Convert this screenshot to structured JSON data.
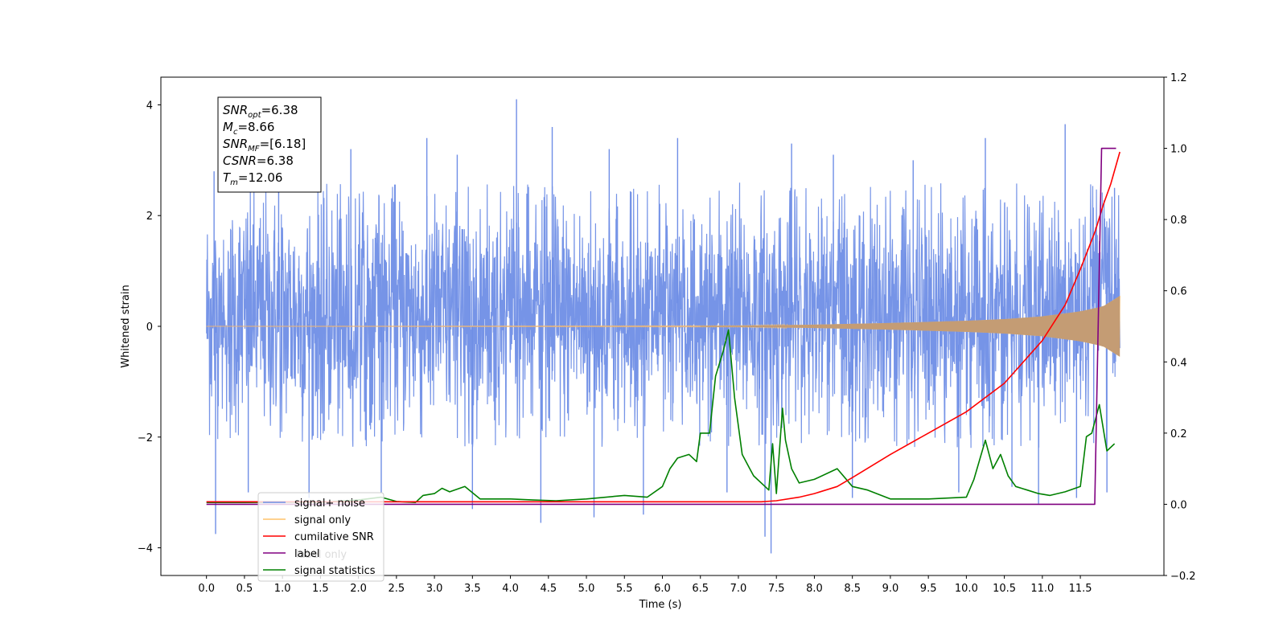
{
  "chart_data": {
    "type": "line",
    "xlabel": "Time (s)",
    "ylabel_left": "Whitened strain",
    "xlim": [
      -0.6,
      12.6
    ],
    "ylim_left": [
      -4.5,
      4.5
    ],
    "ylim_right": [
      -0.2,
      1.2
    ],
    "x_ticks": [
      0.0,
      0.5,
      1.0,
      1.5,
      2.0,
      2.5,
      3.0,
      3.5,
      4.0,
      4.5,
      5.0,
      5.5,
      6.0,
      6.5,
      7.0,
      7.5,
      8.0,
      8.5,
      9.0,
      9.5,
      10.0,
      10.5,
      11.0,
      11.5
    ],
    "x_tick_labels": [
      "0.0",
      "0.5",
      "1.0",
      "1.5",
      "2.0",
      "2.5",
      "3.0",
      "3.5",
      "4.0",
      "4.5",
      "5.0",
      "5.5",
      "6.0",
      "6.5",
      "7.0",
      "7.5",
      "8.0",
      "8.5",
      "9.0",
      "9.5",
      "10.0",
      "10.5",
      "11.0",
      "11.5"
    ],
    "y_left_ticks": [
      -4,
      -2,
      0,
      2,
      4
    ],
    "y_left_tick_labels": [
      "−4",
      "−2",
      "0",
      "2",
      "4"
    ],
    "y_right_ticks": [
      -0.2,
      0.0,
      0.2,
      0.4,
      0.6,
      0.8,
      1.0,
      1.2
    ],
    "y_right_tick_labels": [
      "−0.2",
      "0.0",
      "0.2",
      "0.4",
      "0.6",
      "0.8",
      "1.0",
      "1.2"
    ],
    "grid": false,
    "annotation": [
      {
        "main": "SNR",
        "sub": "opt",
        "rest": "=6.38"
      },
      {
        "main": "M",
        "sub": "c",
        "rest": "=8.66"
      },
      {
        "main": "SNR",
        "sub": "MF",
        "rest": "=[6.18]"
      },
      {
        "main": "CSNR",
        "sub": "",
        "rest": "=6.38"
      },
      {
        "main": "T",
        "sub": "m",
        "rest": "=12.06"
      }
    ],
    "legend": {
      "placement": "lower-left",
      "entries": [
        {
          "name": "signal+ noise",
          "color": "#6f8ee6"
        },
        {
          "name": "signal only",
          "color": "#ffc46a"
        },
        {
          "name": "cumilative SNR",
          "color": "#ff0000"
        },
        {
          "name": "label",
          "color": "#800080"
        },
        {
          "name": "signal statistics",
          "color": "#008000"
        }
      ],
      "ghost_text": "label only"
    },
    "series": [
      {
        "name": "signal+ noise",
        "axis": "left",
        "color": "#6f8ee6",
        "style": "dense noise band",
        "x_range": [
          0.0,
          12.02
        ],
        "typical_range": [
          -1.9,
          2.3
        ],
        "spikes": [
          {
            "x": 0.12,
            "y": -3.75
          },
          {
            "x": 0.1,
            "y": 2.8
          },
          {
            "x": 0.55,
            "y": -3.0
          },
          {
            "x": 0.95,
            "y": 2.7
          },
          {
            "x": 1.35,
            "y": -3.1
          },
          {
            "x": 1.9,
            "y": 3.2
          },
          {
            "x": 2.3,
            "y": -3.0
          },
          {
            "x": 2.9,
            "y": 3.4
          },
          {
            "x": 3.3,
            "y": 3.1
          },
          {
            "x": 3.5,
            "y": -3.3
          },
          {
            "x": 4.08,
            "y": 4.1
          },
          {
            "x": 4.4,
            "y": -3.55
          },
          {
            "x": 4.55,
            "y": 3.6
          },
          {
            "x": 5.1,
            "y": -3.45
          },
          {
            "x": 5.3,
            "y": 3.2
          },
          {
            "x": 5.75,
            "y": -3.4
          },
          {
            "x": 6.2,
            "y": 3.4
          },
          {
            "x": 6.85,
            "y": -3.0
          },
          {
            "x": 7.35,
            "y": -3.8
          },
          {
            "x": 7.43,
            "y": -4.1
          },
          {
            "x": 7.7,
            "y": 3.3
          },
          {
            "x": 8.25,
            "y": 3.1
          },
          {
            "x": 8.5,
            "y": -3.1
          },
          {
            "x": 9.3,
            "y": 3.0
          },
          {
            "x": 9.9,
            "y": -3.0
          },
          {
            "x": 10.25,
            "y": 3.4
          },
          {
            "x": 10.6,
            "y": -2.9
          },
          {
            "x": 10.95,
            "y": -3.2
          },
          {
            "x": 11.3,
            "y": 3.65
          },
          {
            "x": 11.45,
            "y": -3.1
          },
          {
            "x": 11.85,
            "y": -3.0
          },
          {
            "x": 11.95,
            "y": 2.5
          }
        ]
      },
      {
        "name": "signal only",
        "axis": "left",
        "color": "#ffc46a",
        "style": "chirp envelope",
        "x": [
          0.0,
          7.0,
          8.0,
          9.0,
          10.0,
          10.5,
          11.0,
          11.5,
          11.8,
          12.02
        ],
        "envelope": [
          0.0,
          0.01,
          0.03,
          0.06,
          0.1,
          0.13,
          0.18,
          0.27,
          0.36,
          0.55
        ]
      },
      {
        "name": "cumilative SNR",
        "axis": "right",
        "color": "#ff0000",
        "x": [
          0.0,
          7.3,
          7.5,
          7.8,
          8.0,
          8.3,
          8.5,
          9.0,
          9.5,
          10.0,
          10.5,
          11.0,
          11.3,
          11.5,
          11.7,
          11.8,
          11.9,
          12.02
        ],
        "values": [
          0.007,
          0.007,
          0.01,
          0.02,
          0.03,
          0.05,
          0.075,
          0.14,
          0.2,
          0.26,
          0.34,
          0.46,
          0.56,
          0.66,
          0.77,
          0.84,
          0.9,
          0.99
        ]
      },
      {
        "name": "label",
        "axis": "right",
        "color": "#800080",
        "x": [
          0.0,
          11.69,
          11.78,
          11.97
        ],
        "values": [
          0.0,
          0.0,
          1.0,
          1.0
        ]
      },
      {
        "name": "signal statistics",
        "axis": "right",
        "color": "#008000",
        "x": [
          0.0,
          0.5,
          1.0,
          1.5,
          2.0,
          2.3,
          2.5,
          2.75,
          2.85,
          3.0,
          3.1,
          3.2,
          3.4,
          3.6,
          3.75,
          4.0,
          4.3,
          4.6,
          5.0,
          5.5,
          5.8,
          6.0,
          6.1,
          6.2,
          6.35,
          6.45,
          6.5,
          6.62,
          6.7,
          6.8,
          6.87,
          6.95,
          7.05,
          7.15,
          7.2,
          7.4,
          7.45,
          7.5,
          7.58,
          7.62,
          7.7,
          7.8,
          8.0,
          8.3,
          8.5,
          8.7,
          9.0,
          9.5,
          10.0,
          10.1,
          10.25,
          10.35,
          10.45,
          10.55,
          10.65,
          10.8,
          10.95,
          11.1,
          11.3,
          11.5,
          11.58,
          11.65,
          11.75,
          11.85,
          11.95
        ],
        "values": [
          0.005,
          0.005,
          0.006,
          0.006,
          0.012,
          0.02,
          0.008,
          0.005,
          0.025,
          0.03,
          0.045,
          0.035,
          0.05,
          0.015,
          0.015,
          0.015,
          0.012,
          0.01,
          0.015,
          0.025,
          0.02,
          0.05,
          0.1,
          0.13,
          0.14,
          0.12,
          0.2,
          0.2,
          0.36,
          0.43,
          0.49,
          0.3,
          0.14,
          0.1,
          0.08,
          0.04,
          0.17,
          0.03,
          0.27,
          0.18,
          0.1,
          0.06,
          0.07,
          0.1,
          0.05,
          0.04,
          0.015,
          0.015,
          0.02,
          0.07,
          0.18,
          0.1,
          0.14,
          0.08,
          0.05,
          0.04,
          0.03,
          0.025,
          0.035,
          0.05,
          0.19,
          0.2,
          0.28,
          0.15,
          0.17
        ]
      }
    ]
  }
}
